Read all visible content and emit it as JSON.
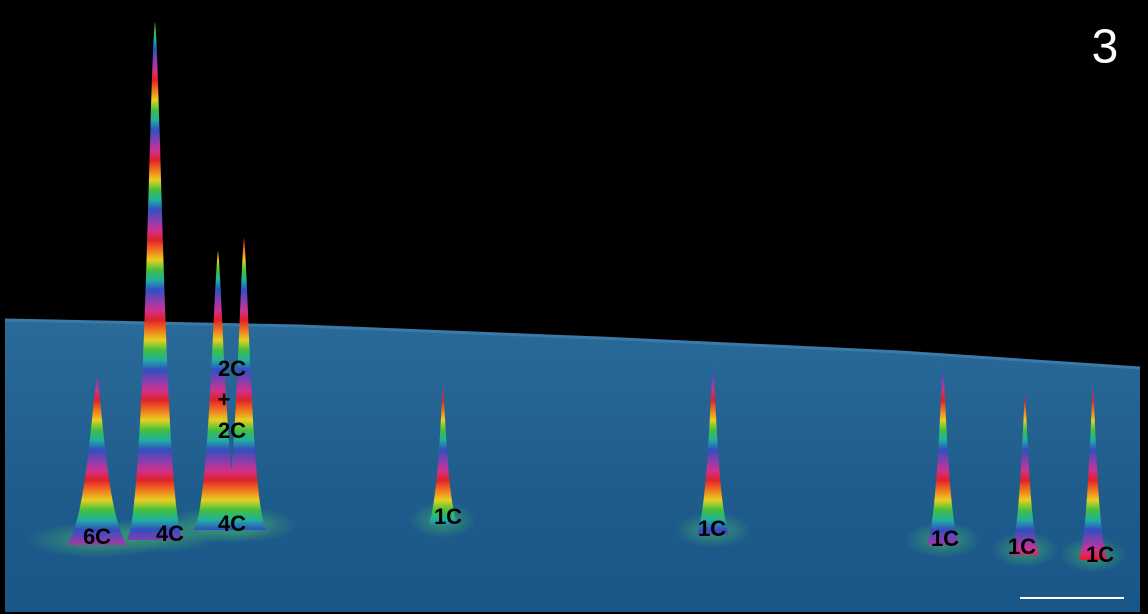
{
  "panel_label": "3",
  "peak_labels": [
    "6C",
    "4C",
    "4C",
    "2C",
    "+",
    "2C",
    "1C",
    "1C",
    "1C",
    "1C",
    "1C"
  ]
}
